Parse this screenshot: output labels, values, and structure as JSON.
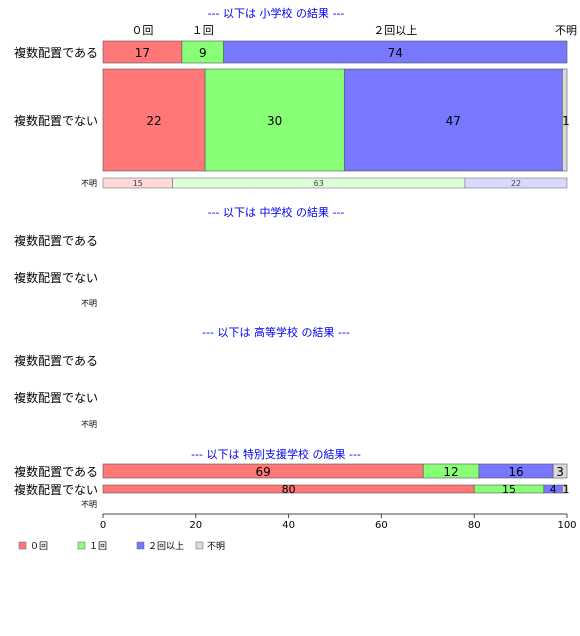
{
  "chart_data": {
    "type": "bar",
    "orientation": "horizontal",
    "stacking": "percent-stacked",
    "xlim": [
      0,
      100
    ],
    "x_ticks": [
      "0",
      "20",
      "40",
      "60",
      "80",
      "100"
    ],
    "series": [
      {
        "name": "０回",
        "color": "#ff7777"
      },
      {
        "name": "１回",
        "color": "#88ff77"
      },
      {
        "name": "２回以上",
        "color": "#7777ff"
      },
      {
        "name": "不明",
        "color": "#d9d9d9"
      }
    ],
    "top_labels": [
      "０回",
      "１回",
      "２回以上",
      "不明"
    ],
    "groups": [
      {
        "title": "--- 以下は 小学校 の結果 ---",
        "rows": [
          {
            "label": "複数配置である",
            "values": [
              17,
              9,
              74,
              0
            ]
          },
          {
            "label": "複数配置でない",
            "values": [
              22,
              30,
              47,
              1
            ]
          },
          {
            "label": "不明",
            "values": [
              15,
              63,
              22,
              0
            ]
          }
        ]
      },
      {
        "title": "--- 以下は 中学校 の結果 ---",
        "rows": [
          {
            "label": "複数配置である",
            "values": []
          },
          {
            "label": "複数配置でない",
            "values": []
          },
          {
            "label": "不明",
            "values": []
          }
        ]
      },
      {
        "title": "--- 以下は 高等学校 の結果 ---",
        "rows": [
          {
            "label": "複数配置である",
            "values": []
          },
          {
            "label": "複数配置でない",
            "values": []
          },
          {
            "label": "不明",
            "values": []
          }
        ]
      },
      {
        "title": "--- 以下は 特別支援学校 の結果 ---",
        "rows": [
          {
            "label": "複数配置である",
            "values": [
              69,
              12,
              16,
              3
            ]
          },
          {
            "label": "複数配置でない",
            "values": [
              80,
              15,
              4,
              1
            ]
          },
          {
            "label": "不明",
            "values": []
          }
        ]
      }
    ]
  }
}
